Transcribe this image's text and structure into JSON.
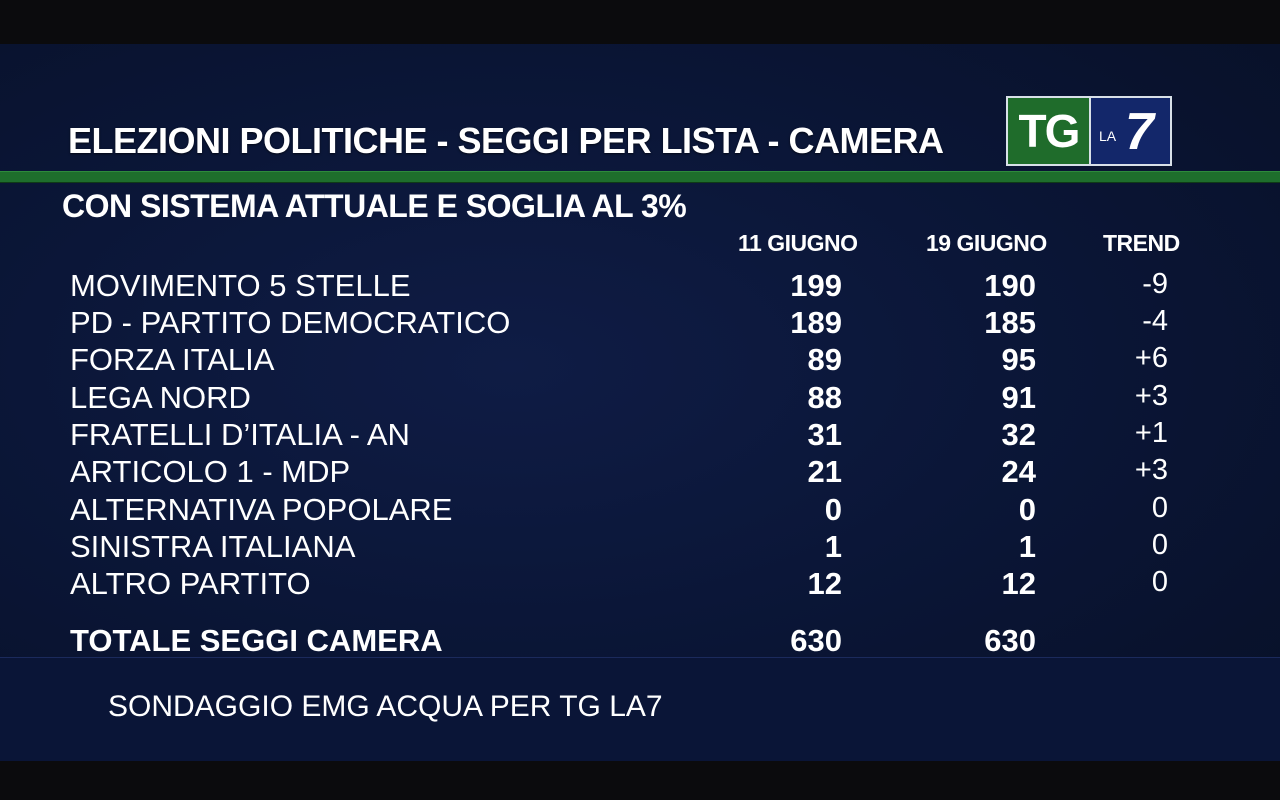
{
  "title": "ELEZIONI POLITICHE - SEGGI  PER  LISTA - CAMERA",
  "subtitle": "CON SISTEMA ATTUALE E SOGLIA AL 3%",
  "logo": {
    "tg": "TG",
    "la": "LA",
    "seven": "7"
  },
  "columns": {
    "date1": "11 GIUGNO",
    "date2": "19 GIUGNO",
    "trend": "TREND"
  },
  "rows": [
    {
      "name": "MOVIMENTO 5 STELLE",
      "v1": "199",
      "v2": "190",
      "trend": "-9"
    },
    {
      "name": "PD - PARTITO DEMOCRATICO",
      "v1": "189",
      "v2": "185",
      "trend": "-4"
    },
    {
      "name": "FORZA ITALIA",
      "v1": "89",
      "v2": "95",
      "trend": "+6"
    },
    {
      "name": "LEGA NORD",
      "v1": "88",
      "v2": "91",
      "trend": "+3"
    },
    {
      "name": "FRATELLI D’ITALIA - AN",
      "v1": "31",
      "v2": "32",
      "trend": "+1"
    },
    {
      "name": "ARTICOLO 1  - MDP",
      "v1": "21",
      "v2": "24",
      "trend": "+3"
    },
    {
      "name": "ALTERNATIVA POPOLARE",
      "v1": "0",
      "v2": "0",
      "trend": "0"
    },
    {
      "name": "SINISTRA ITALIANA",
      "v1": "1",
      "v2": "1",
      "trend": "0"
    },
    {
      "name": "ALTRO PARTITO",
      "v1": "12",
      "v2": "12",
      "trend": "0"
    }
  ],
  "total": {
    "name": "TOTALE SEGGI CAMERA",
    "v1": "630",
    "v2": "630"
  },
  "source": "SONDAGGIO EMG ACQUA PER TG LA7",
  "colors": {
    "background": "#0a1535",
    "accent_green": "#1e6e2c",
    "logo_blue": "#13276a"
  }
}
